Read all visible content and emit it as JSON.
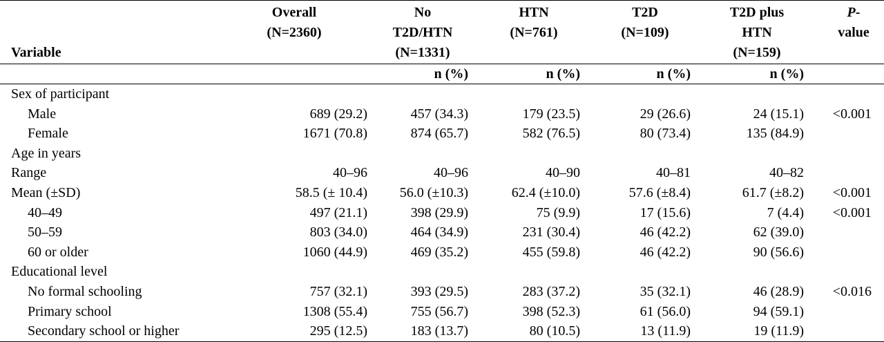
{
  "header": {
    "variable": "Variable",
    "overall_l1": "Overall",
    "overall_l2": "(N=2360)",
    "none_l1": "No",
    "none_l2": "T2D/HTN",
    "none_l3": "(N=1331)",
    "htn_l1": "HTN",
    "htn_l2": "(N=761)",
    "t2d_l1": "T2D",
    "t2d_l2": "(N=109)",
    "both_l1": "T2D plus",
    "both_l2": "HTN",
    "both_l3": "(N=159)",
    "pval_italic": "P",
    "pval_l1_rest": "-",
    "pval_l2": "value",
    "unit": "n (%)"
  },
  "rows": [
    {
      "label": "Sex of participant",
      "indent": false,
      "overall": "",
      "none": "",
      "htn": "",
      "t2d": "",
      "both": "",
      "p": ""
    },
    {
      "label": "Male",
      "indent": true,
      "overall": "689 (29.2)",
      "none": "457 (34.3)",
      "htn": "179 (23.5)",
      "t2d": "29 (26.6)",
      "both": "24 (15.1)",
      "p": "<0.001"
    },
    {
      "label": "Female",
      "indent": true,
      "overall": "1671 (70.8)",
      "none": "874 (65.7)",
      "htn": "582 (76.5)",
      "t2d": "80 (73.4)",
      "both": "135 (84.9)",
      "p": ""
    },
    {
      "label": "Age in years",
      "indent": false,
      "overall": "",
      "none": "",
      "htn": "",
      "t2d": "",
      "both": "",
      "p": ""
    },
    {
      "label": "Range",
      "indent": false,
      "overall": "40–96",
      "none": "40–96",
      "htn": "40–90",
      "t2d": "40–81",
      "both": "40–82",
      "p": ""
    },
    {
      "label": "Mean (±SD)",
      "indent": false,
      "overall": "58.5 (± 10.4)",
      "none": "56.0 (±10.3)",
      "htn": "62.4 (±10.0)",
      "t2d": "57.6 (±8.4)",
      "both": "61.7 (±8.2)",
      "p": "<0.001"
    },
    {
      "label": "40–49",
      "indent": true,
      "overall": "497 (21.1)",
      "none": "398 (29.9)",
      "htn": "75 (9.9)",
      "t2d": "17 (15.6)",
      "both": "7 (4.4)",
      "p": "<0.001"
    },
    {
      "label": "50–59",
      "indent": true,
      "overall": "803 (34.0)",
      "none": "464 (34.9)",
      "htn": "231 (30.4)",
      "t2d": "46 (42.2)",
      "both": "62 (39.0)",
      "p": ""
    },
    {
      "label": "60 or older",
      "indent": true,
      "overall": "1060 (44.9)",
      "none": "469 (35.2)",
      "htn": "455 (59.8)",
      "t2d": "46 (42.2)",
      "both": "90 (56.6)",
      "p": ""
    },
    {
      "label": "Educational level",
      "indent": false,
      "overall": "",
      "none": "",
      "htn": "",
      "t2d": "",
      "both": "",
      "p": ""
    },
    {
      "label": "No formal schooling",
      "indent": true,
      "overall": "757 (32.1)",
      "none": "393 (29.5)",
      "htn": "283 (37.2)",
      "t2d": "35 (32.1)",
      "both": "46 (28.9)",
      "p": "<0.016"
    },
    {
      "label": "Primary school",
      "indent": true,
      "overall": "1308 (55.4)",
      "none": "755 (56.7)",
      "htn": "398 (52.3)",
      "t2d": "61 (56.0)",
      "both": "94 (59.1)",
      "p": ""
    },
    {
      "label": "Secondary school or higher",
      "indent": true,
      "overall": "295 (12.5)",
      "none": "183 (13.7)",
      "htn": "80 (10.5)",
      "t2d": "13 (11.9)",
      "both": "19 (11.9)",
      "p": ""
    }
  ]
}
